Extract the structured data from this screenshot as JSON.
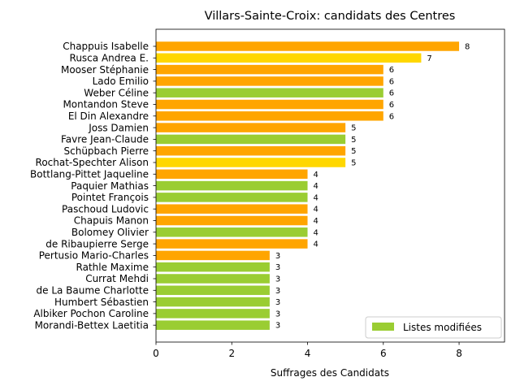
{
  "chart_data": {
    "type": "bar",
    "orientation": "horizontal",
    "title": "Villars-Sainte-Croix: candidats des Centres",
    "xlabel": "Suffrages des Candidats",
    "ylabel": "",
    "xlim": [
      0,
      9.2
    ],
    "xticks": [
      0,
      2,
      4,
      6,
      8
    ],
    "grid": false,
    "legend": {
      "position": "lower right",
      "entries": [
        {
          "label": "Listes modifiées",
          "color": "#9acd32"
        }
      ]
    },
    "colors": {
      "orange": "#ffa500",
      "gold": "#ffd700",
      "green": "#9acd32"
    },
    "bars": [
      {
        "label": "Chappuis Isabelle",
        "value": 8,
        "color": "#ffa500"
      },
      {
        "label": "Rusca Andrea E.",
        "value": 7,
        "color": "#ffd700"
      },
      {
        "label": "Mooser Stéphanie",
        "value": 6,
        "color": "#ffa500"
      },
      {
        "label": "Lado Emilio",
        "value": 6,
        "color": "#ffa500"
      },
      {
        "label": "Weber Céline",
        "value": 6,
        "color": "#9acd32"
      },
      {
        "label": "Montandon Steve",
        "value": 6,
        "color": "#ffa500"
      },
      {
        "label": "El Din Alexandre",
        "value": 6,
        "color": "#ffa500"
      },
      {
        "label": "Joss Damien",
        "value": 5,
        "color": "#ffa500"
      },
      {
        "label": "Favre Jean-Claude",
        "value": 5,
        "color": "#9acd32"
      },
      {
        "label": "Schüpbach Pierre",
        "value": 5,
        "color": "#ffa500"
      },
      {
        "label": "Rochat-Spechter Alison",
        "value": 5,
        "color": "#ffd700"
      },
      {
        "label": "Bottlang-Pittet Jaqueline",
        "value": 4,
        "color": "#ffa500"
      },
      {
        "label": "Paquier Mathias",
        "value": 4,
        "color": "#9acd32"
      },
      {
        "label": "Pointet François",
        "value": 4,
        "color": "#9acd32"
      },
      {
        "label": "Paschoud Ludovic",
        "value": 4,
        "color": "#ffa500"
      },
      {
        "label": "Chapuis Manon",
        "value": 4,
        "color": "#ffa500"
      },
      {
        "label": "Bolomey Olivier",
        "value": 4,
        "color": "#9acd32"
      },
      {
        "label": "de Ribaupierre Serge",
        "value": 4,
        "color": "#ffa500"
      },
      {
        "label": "Pertusio Mario-Charles",
        "value": 3,
        "color": "#ffa500"
      },
      {
        "label": "Rathle Maxime",
        "value": 3,
        "color": "#9acd32"
      },
      {
        "label": "Currat Mehdi",
        "value": 3,
        "color": "#9acd32"
      },
      {
        "label": "de La Baume Charlotte",
        "value": 3,
        "color": "#9acd32"
      },
      {
        "label": "Humbert Sébastien",
        "value": 3,
        "color": "#9acd32"
      },
      {
        "label": "Albiker Pochon Caroline",
        "value": 3,
        "color": "#9acd32"
      },
      {
        "label": "Morandi-Bettex Laetitia",
        "value": 3,
        "color": "#9acd32"
      }
    ]
  }
}
